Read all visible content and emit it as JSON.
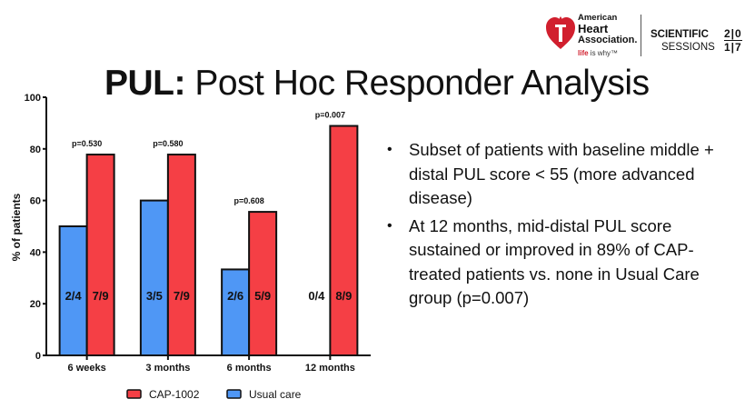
{
  "title": {
    "bold": "PUL:",
    "rest": " Post Hoc Responder Analysis"
  },
  "logo": {
    "org_line1": "American",
    "org_line2": "Heart",
    "org_line3": "Association.",
    "tagline_red": "life",
    "tagline_rest": " is why™",
    "event_line1": "SCIENTIFIC",
    "event_line2": "SESSIONS",
    "year_top": "2|0",
    "year_bottom": "1|7",
    "icon": "heart-torch-icon",
    "color": "#d11f2e"
  },
  "bullets": [
    "Subset of patients with baseline middle + distal PUL score < 55 (more advanced disease)",
    "At 12 months, mid-distal PUL score sustained or improved in 89% of CAP-treated patients vs. none in Usual Care group (p=0.007)"
  ],
  "bullet_glyph": "•",
  "chart_data": {
    "type": "bar",
    "title": "",
    "xlabel": "",
    "ylabel": "% of patients",
    "ylim": [
      0,
      100
    ],
    "yticks": [
      0,
      20,
      40,
      60,
      80,
      100
    ],
    "ytick_labels": [
      "0",
      "20",
      "40",
      "60",
      "80",
      "100"
    ],
    "categories": [
      "6 weeks",
      "3 months",
      "6 months",
      "12 months"
    ],
    "series": [
      {
        "name": "Usual care",
        "color": "#4f97f5",
        "values": [
          50,
          60,
          33.3,
          0
        ],
        "labels": [
          "2/4",
          "3/5",
          "2/6",
          "0/4"
        ]
      },
      {
        "name": "CAP-1002",
        "color": "#f53f45",
        "values": [
          77.8,
          77.8,
          55.6,
          88.9
        ],
        "labels": [
          "7/9",
          "7/9",
          "5/9",
          "8/9"
        ]
      }
    ],
    "p_values": [
      "p=0.530",
      "p=0.580",
      "p=0.608",
      "p=0.007"
    ],
    "legend": {
      "position": "bottom",
      "entries": [
        "CAP-1002",
        "Usual care"
      ]
    },
    "grid": false
  }
}
